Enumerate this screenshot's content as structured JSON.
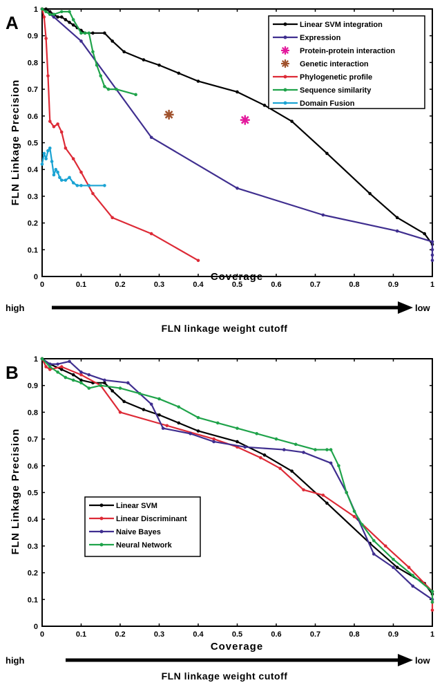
{
  "chart_data": [
    {
      "type": "line",
      "panel": "A",
      "xlabel": "Coverage",
      "ylabel": "FLN Linkage Precision",
      "xlim": [
        0,
        1
      ],
      "ylim": [
        0,
        1
      ],
      "xticks": [
        "0",
        "0.1",
        "0.2",
        "0.3",
        "0.4",
        "0.5",
        "0.6",
        "0.7",
        "0.8",
        "0.9",
        "1"
      ],
      "yticks": [
        "0",
        "0.1",
        "0.2",
        "0.3",
        "0.4",
        "0.5",
        "0.6",
        "0.7",
        "0.8",
        "0.9",
        "1"
      ],
      "legend_position": "top-right",
      "arrow": {
        "left": "high",
        "right": "low",
        "caption": "FLN linkage weight cutoff"
      },
      "series": [
        {
          "name": "Linear SVM integration",
          "color": "#000000",
          "marker": "dot",
          "x": [
            0.0,
            0.01,
            0.02,
            0.03,
            0.04,
            0.05,
            0.06,
            0.07,
            0.08,
            0.09,
            0.1,
            0.11,
            0.13,
            0.16,
            0.18,
            0.21,
            0.26,
            0.3,
            0.35,
            0.4,
            0.5,
            0.57,
            0.64,
            0.73,
            0.84,
            0.91,
            0.98,
            1.0
          ],
          "y": [
            1.0,
            1.0,
            0.99,
            0.98,
            0.97,
            0.97,
            0.96,
            0.95,
            0.94,
            0.93,
            0.92,
            0.91,
            0.91,
            0.91,
            0.88,
            0.84,
            0.81,
            0.79,
            0.76,
            0.73,
            0.69,
            0.64,
            0.58,
            0.46,
            0.31,
            0.22,
            0.16,
            0.12
          ]
        },
        {
          "name": "Expression",
          "color": "#3f2e8f",
          "marker": "dot",
          "x": [
            0.0,
            0.01,
            0.02,
            0.03,
            0.1,
            0.28,
            0.5,
            0.72,
            0.91,
            1.0,
            1.0,
            1.0,
            1.0
          ],
          "y": [
            1.0,
            0.99,
            0.98,
            0.97,
            0.88,
            0.52,
            0.33,
            0.23,
            0.17,
            0.13,
            0.1,
            0.08,
            0.06
          ]
        },
        {
          "name": "Protein-protein interaction",
          "color": "#e31a9c",
          "marker": "star",
          "x": [
            0.52
          ],
          "y": [
            0.585
          ]
        },
        {
          "name": "Genetic interaction",
          "color": "#a0522d",
          "marker": "star",
          "x": [
            0.325
          ],
          "y": [
            0.605
          ]
        },
        {
          "name": "Phylogenetic profile",
          "color": "#dd2a36",
          "marker": "dot",
          "x": [
            0.0,
            0.005,
            0.01,
            0.015,
            0.02,
            0.03,
            0.04,
            0.05,
            0.06,
            0.08,
            0.1,
            0.13,
            0.18,
            0.28,
            0.4
          ],
          "y": [
            1.0,
            0.97,
            0.89,
            0.75,
            0.58,
            0.56,
            0.57,
            0.54,
            0.48,
            0.44,
            0.39,
            0.31,
            0.22,
            0.16,
            0.06
          ]
        },
        {
          "name": "Sequence similarity",
          "color": "#1fa34a",
          "marker": "dot",
          "x": [
            0.0,
            0.01,
            0.02,
            0.03,
            0.05,
            0.07,
            0.08,
            0.1,
            0.11,
            0.12,
            0.13,
            0.14,
            0.15,
            0.16,
            0.17,
            0.19,
            0.24
          ],
          "y": [
            1.0,
            0.99,
            0.98,
            0.98,
            0.99,
            0.99,
            0.96,
            0.91,
            0.91,
            0.91,
            0.84,
            0.79,
            0.75,
            0.71,
            0.7,
            0.7,
            0.68
          ]
        },
        {
          "name": "Domain Fusion",
          "color": "#1aa3d3",
          "marker": "dot",
          "x": [
            0.0,
            0.005,
            0.01,
            0.015,
            0.02,
            0.025,
            0.03,
            0.035,
            0.04,
            0.045,
            0.05,
            0.06,
            0.07,
            0.08,
            0.09,
            0.1,
            0.12,
            0.16
          ],
          "y": [
            0.42,
            0.46,
            0.44,
            0.47,
            0.48,
            0.43,
            0.38,
            0.4,
            0.39,
            0.37,
            0.36,
            0.36,
            0.37,
            0.35,
            0.34,
            0.34,
            0.34,
            0.34
          ]
        }
      ]
    },
    {
      "type": "line",
      "panel": "B",
      "xlabel": "Coverage",
      "ylabel": "FLN Linkage Precision",
      "xlim": [
        0,
        1
      ],
      "ylim": [
        0,
        1
      ],
      "xticks": [
        "0",
        "0.1",
        "0.2",
        "0.3",
        "0.4",
        "0.5",
        "0.6",
        "0.7",
        "0.8",
        "0.9",
        "1"
      ],
      "yticks": [
        "0",
        "0.1",
        "0.2",
        "0.3",
        "0.4",
        "0.5",
        "0.6",
        "0.7",
        "0.8",
        "0.9",
        "1"
      ],
      "legend_position": "middle-left",
      "arrow": {
        "left": "high",
        "right": "low",
        "caption": "FLN linkage weight cutoff"
      },
      "series": [
        {
          "name": "Linear SVM",
          "color": "#000000",
          "marker": "dot",
          "x": [
            0.0,
            0.02,
            0.05,
            0.08,
            0.1,
            0.13,
            0.16,
            0.18,
            0.21,
            0.26,
            0.3,
            0.35,
            0.4,
            0.5,
            0.57,
            0.64,
            0.73,
            0.84,
            0.91,
            0.98,
            1.0
          ],
          "y": [
            1.0,
            0.98,
            0.96,
            0.94,
            0.92,
            0.91,
            0.91,
            0.88,
            0.84,
            0.81,
            0.79,
            0.76,
            0.73,
            0.69,
            0.64,
            0.58,
            0.46,
            0.31,
            0.22,
            0.16,
            0.12
          ]
        },
        {
          "name": "Linear Discriminant",
          "color": "#dd2a36",
          "marker": "dot",
          "x": [
            0.0,
            0.01,
            0.02,
            0.05,
            0.1,
            0.15,
            0.2,
            0.32,
            0.44,
            0.5,
            0.56,
            0.61,
            0.67,
            0.72,
            0.8,
            0.88,
            0.94,
            1.0,
            1.0,
            1.0
          ],
          "y": [
            1.0,
            0.97,
            0.96,
            0.97,
            0.94,
            0.9,
            0.8,
            0.75,
            0.7,
            0.67,
            0.63,
            0.59,
            0.51,
            0.49,
            0.41,
            0.3,
            0.22,
            0.13,
            0.09,
            0.06
          ]
        },
        {
          "name": "Naive Bayes",
          "color": "#3f2e8f",
          "marker": "dot",
          "x": [
            0.0,
            0.02,
            0.04,
            0.07,
            0.1,
            0.12,
            0.16,
            0.22,
            0.28,
            0.31,
            0.38,
            0.44,
            0.52,
            0.62,
            0.67,
            0.74,
            0.78,
            0.81,
            0.85,
            0.9,
            0.95,
            1.0
          ],
          "y": [
            1.0,
            0.98,
            0.98,
            0.99,
            0.95,
            0.94,
            0.92,
            0.91,
            0.83,
            0.74,
            0.72,
            0.69,
            0.67,
            0.66,
            0.65,
            0.61,
            0.5,
            0.4,
            0.27,
            0.22,
            0.15,
            0.1
          ]
        },
        {
          "name": "Neural Network",
          "color": "#1fa34a",
          "marker": "dot",
          "x": [
            0.0,
            0.02,
            0.04,
            0.06,
            0.08,
            0.1,
            0.12,
            0.15,
            0.2,
            0.25,
            0.3,
            0.35,
            0.4,
            0.45,
            0.5,
            0.55,
            0.6,
            0.65,
            0.7,
            0.73,
            0.74,
            0.76,
            0.78,
            0.8,
            0.82,
            0.85,
            0.9,
            0.95,
            1.0,
            1.0
          ],
          "y": [
            1.0,
            0.97,
            0.95,
            0.93,
            0.92,
            0.91,
            0.89,
            0.9,
            0.89,
            0.87,
            0.85,
            0.82,
            0.78,
            0.76,
            0.74,
            0.72,
            0.7,
            0.68,
            0.66,
            0.66,
            0.66,
            0.6,
            0.5,
            0.43,
            0.38,
            0.32,
            0.25,
            0.19,
            0.13,
            0.09
          ]
        }
      ]
    }
  ]
}
